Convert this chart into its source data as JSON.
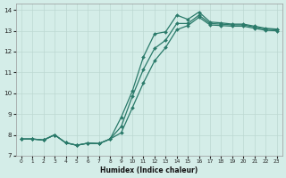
{
  "bg_color": "#d4ede8",
  "line_color": "#2a7a6a",
  "grid_color": "#bcd8d2",
  "xlabel": "Humidex (Indice chaleur)",
  "xlim": [
    -0.5,
    23.5
  ],
  "ylim": [
    7.0,
    14.3
  ],
  "xticks": [
    0,
    1,
    2,
    3,
    4,
    5,
    6,
    7,
    8,
    9,
    10,
    11,
    12,
    13,
    14,
    15,
    16,
    17,
    18,
    19,
    20,
    21,
    22,
    23
  ],
  "yticks": [
    7,
    8,
    9,
    10,
    11,
    12,
    13,
    14
  ],
  "curve1_x": [
    0,
    1,
    2,
    3,
    4,
    5,
    6,
    7,
    8,
    9,
    10,
    11,
    12,
    13,
    14,
    15,
    16,
    17,
    18,
    19,
    20,
    21,
    22,
    23
  ],
  "curve1_y": [
    7.8,
    7.8,
    7.75,
    8.0,
    7.62,
    7.5,
    7.6,
    7.58,
    7.8,
    8.85,
    10.1,
    11.75,
    12.85,
    12.95,
    13.75,
    13.55,
    13.9,
    13.42,
    13.38,
    13.32,
    13.32,
    13.22,
    13.12,
    13.08
  ],
  "curve2_x": [
    0,
    1,
    2,
    3,
    4,
    5,
    6,
    7,
    8,
    9,
    10,
    11,
    12,
    13,
    14,
    15,
    16,
    17,
    18,
    19,
    20,
    21,
    22,
    23
  ],
  "curve2_y": [
    7.8,
    7.8,
    7.75,
    8.0,
    7.62,
    7.5,
    7.6,
    7.58,
    7.8,
    8.4,
    9.85,
    11.15,
    12.15,
    12.55,
    13.35,
    13.35,
    13.75,
    13.35,
    13.32,
    13.28,
    13.28,
    13.18,
    13.08,
    13.05
  ],
  "curve3_x": [
    0,
    1,
    2,
    3,
    4,
    5,
    6,
    7,
    8,
    9,
    10,
    11,
    12,
    13,
    14,
    15,
    16,
    17,
    18,
    19,
    20,
    21,
    22,
    23
  ],
  "curve3_y": [
    7.8,
    7.8,
    7.75,
    8.0,
    7.62,
    7.5,
    7.6,
    7.58,
    7.8,
    8.1,
    9.3,
    10.5,
    11.55,
    12.2,
    13.05,
    13.25,
    13.65,
    13.28,
    13.25,
    13.22,
    13.22,
    13.12,
    13.02,
    13.0
  ]
}
